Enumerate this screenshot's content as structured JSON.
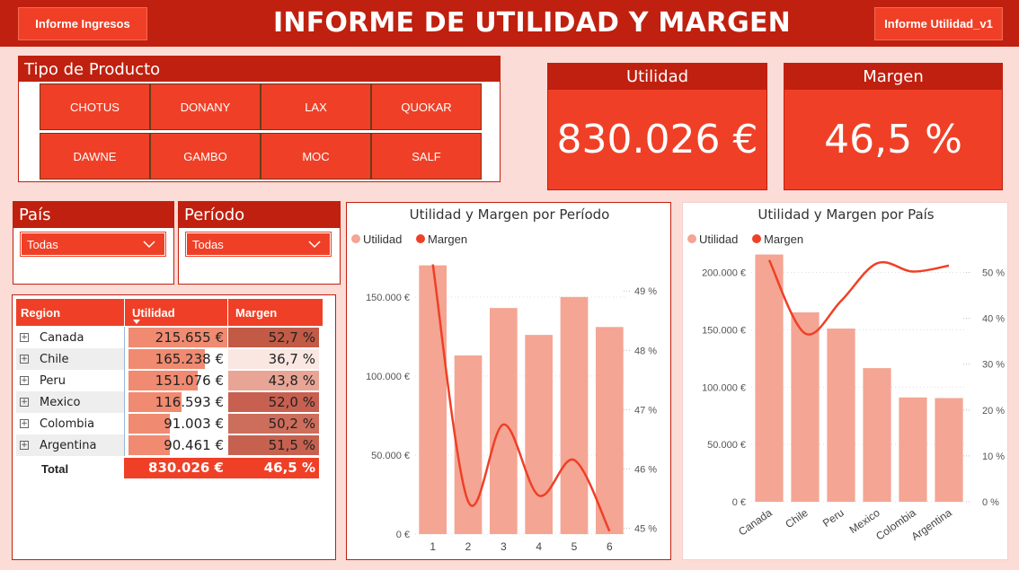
{
  "header": {
    "title": "INFORME DE UTILIDAD Y MARGEN",
    "left_button": "Informe Ingresos",
    "right_button": "Informe Utilidad_v1"
  },
  "colors": {
    "dark_red": "#c0200f",
    "red": "#ef4027",
    "salmon": "#f4a594",
    "background": "#fbdcd6"
  },
  "product_filter": {
    "title": "Tipo de Producto",
    "items": [
      "CHOTUS",
      "DONANY",
      "LAX",
      "QUOKAR",
      "DAWNE",
      "GAMBO",
      "MOC",
      "SALF"
    ]
  },
  "kpis": {
    "utilidad": {
      "label": "Utilidad",
      "value": "830.026 €"
    },
    "margen": {
      "label": "Margen",
      "value": "46,5 %"
    }
  },
  "filters": {
    "pais": {
      "label": "País",
      "selected": "Todas"
    },
    "periodo": {
      "label": "Período",
      "selected": "Todas"
    }
  },
  "matrix": {
    "headers": [
      "Region",
      "Utilidad",
      "Margen"
    ],
    "rows": [
      {
        "region": "Canada",
        "utilidad": "215.655 €",
        "margen": "52,7 %",
        "u_frac": 1.0,
        "m_shade": "#c25a45"
      },
      {
        "region": "Chile",
        "utilidad": "165.238 €",
        "margen": "36,7 %",
        "u_frac": 0.77,
        "m_shade": "#fbe7e2"
      },
      {
        "region": "Peru",
        "utilidad": "151.076 €",
        "margen": "43,8 %",
        "u_frac": 0.7,
        "m_shade": "#e8a595"
      },
      {
        "region": "Mexico",
        "utilidad": "116.593 €",
        "margen": "52,0 %",
        "u_frac": 0.54,
        "m_shade": "#c76050"
      },
      {
        "region": "Colombia",
        "utilidad": "91.003 €",
        "margen": "50,2 %",
        "u_frac": 0.42,
        "m_shade": "#cd6d5b"
      },
      {
        "region": "Argentina",
        "utilidad": "90.461 €",
        "margen": "51,5 %",
        "u_frac": 0.42,
        "m_shade": "#c66150"
      }
    ],
    "total": {
      "label": "Total",
      "utilidad": "830.026 €",
      "margen": "46,5 %"
    }
  },
  "chart_data": [
    {
      "type": "bar",
      "title": "Utilidad y Margen por Período",
      "legend": [
        "Utilidad",
        "Margen"
      ],
      "legend_position": "top-left",
      "categories": [
        "1",
        "2",
        "3",
        "4",
        "5",
        "6"
      ],
      "series": [
        {
          "name": "Utilidad",
          "type": "bar",
          "axis": "left",
          "values": [
            170000,
            113000,
            143000,
            126000,
            150000,
            131000
          ]
        },
        {
          "name": "Margen",
          "type": "line",
          "axis": "right",
          "values": [
            49.45,
            45.45,
            46.75,
            45.55,
            46.15,
            44.95
          ]
        }
      ],
      "y_left": {
        "ticks": [
          "0 €",
          "50.000 €",
          "100.000 €",
          "150.000 €"
        ],
        "range": [
          0,
          180000
        ]
      },
      "y_right": {
        "ticks": [
          "45 %",
          "46 %",
          "47 %",
          "48 %",
          "49 %"
        ],
        "range": [
          44.9,
          49.7
        ]
      },
      "grid": true
    },
    {
      "type": "bar",
      "title": "Utilidad y Margen por País",
      "legend": [
        "Utilidad",
        "Margen"
      ],
      "legend_position": "top-left",
      "categories": [
        "Canada",
        "Chile",
        "Peru",
        "Mexico",
        "Colombia",
        "Argentina"
      ],
      "series": [
        {
          "name": "Utilidad",
          "type": "bar",
          "axis": "left",
          "values": [
            215655,
            165238,
            151076,
            116593,
            91003,
            90461
          ]
        },
        {
          "name": "Margen",
          "type": "line",
          "axis": "right",
          "values": [
            52.7,
            36.7,
            43.8,
            52.0,
            50.2,
            51.5
          ]
        }
      ],
      "y_left": {
        "ticks": [
          "0 €",
          "50.000 €",
          "100.000 €",
          "150.000 €",
          "200.000 €"
        ],
        "range": [
          0,
          220000
        ]
      },
      "y_right": {
        "ticks": [
          "0 %",
          "10 %",
          "20 %",
          "30 %",
          "40 %",
          "50 %"
        ],
        "range": [
          0,
          55
        ]
      },
      "grid": true
    }
  ]
}
